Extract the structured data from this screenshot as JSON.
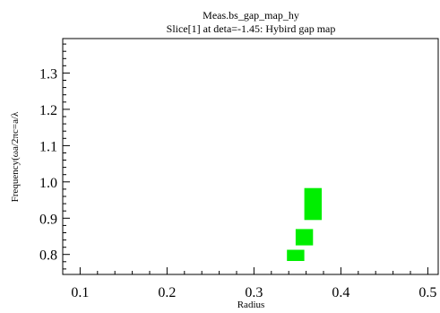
{
  "chart_data": {
    "type": "heatmap",
    "title": "Meas.bs_gap_map_hy",
    "subtitle": "Slice[1] at deta=-1.45: Hybird gap map",
    "xlabel": "Radius",
    "ylabel": "Frequency(ωa/2πc=a/λ",
    "xlim": [
      0.08,
      0.512
    ],
    "ylim": [
      0.745,
      1.395
    ],
    "x_ticks": [
      0.1,
      0.2,
      0.3,
      0.4,
      0.5
    ],
    "x_tick_labels": [
      "0.1",
      "0.2",
      "0.3",
      "0.4",
      "0.5"
    ],
    "y_ticks": [
      0.8,
      0.9,
      1.0,
      1.1,
      1.2,
      1.3
    ],
    "y_tick_labels": [
      "0.8",
      "0.9",
      "1.0",
      "1.1",
      "1.2",
      "1.3"
    ],
    "grid": false,
    "fill_color": "#00ee00",
    "gaps": [
      {
        "r_min": 0.338,
        "r_max": 0.358,
        "f_min": 0.782,
        "f_max": 0.813
      },
      {
        "r_min": 0.348,
        "r_max": 0.368,
        "f_min": 0.825,
        "f_max": 0.87
      },
      {
        "r_min": 0.358,
        "r_max": 0.378,
        "f_min": 0.895,
        "f_max": 0.983
      }
    ]
  }
}
